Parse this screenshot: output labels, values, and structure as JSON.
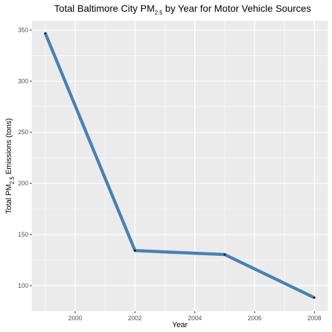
{
  "chart_data": {
    "type": "line",
    "title": {
      "main": "Total Baltimore City  PM",
      "subscript": "2.5",
      "suffix": "  by Year for Motor Vehicle Sources"
    },
    "xlabel": "Year",
    "ylabel": {
      "main": "Total PM",
      "subscript": "2.5",
      "suffix": " Emissions (tons)"
    },
    "x": [
      1999,
      2002,
      2005,
      2008
    ],
    "series": [
      {
        "values": [
          346.82,
          134.31,
          130.43,
          88.28
        ]
      }
    ],
    "xlim": [
      1998.55,
      2008.45
    ],
    "ylim": [
      75.0,
      359.0
    ],
    "xticks": [
      2000,
      2002,
      2004,
      2006,
      2008
    ],
    "xtick_labels": [
      "2000",
      "2002",
      "2004",
      "2006",
      "2008"
    ],
    "yticks": [
      100,
      150,
      200,
      250,
      300,
      350
    ],
    "ytick_labels": [
      "100",
      "150",
      "200",
      "250",
      "300",
      "350"
    ],
    "grid": true,
    "legend": "none",
    "colors": {
      "panel": "#ebebeb",
      "grid": "#ffffff",
      "line": "#4682b4",
      "points": "#000000"
    }
  }
}
